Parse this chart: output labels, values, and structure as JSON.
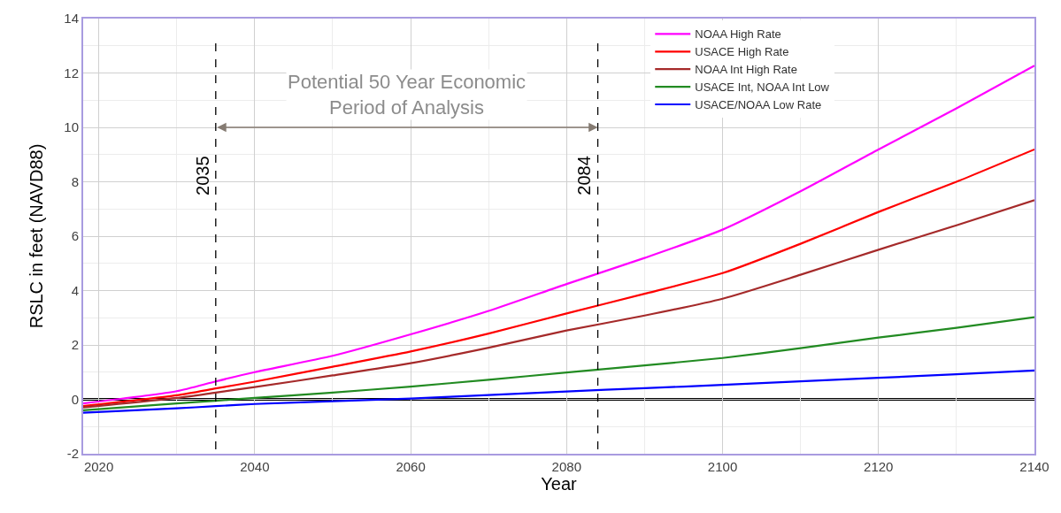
{
  "chart_data": {
    "type": "line",
    "xlabel": "Year",
    "ylabel": "RSLC in feet (NAVD88)",
    "x": [
      2018,
      2030,
      2035,
      2040,
      2050,
      2060,
      2070,
      2080,
      2090,
      2100,
      2110,
      2120,
      2130,
      2140
    ],
    "series": [
      {
        "name": "NOAA High Rate",
        "color": "#ff00ff",
        "values": [
          -0.15,
          0.3,
          0.66,
          1.0,
          1.6,
          2.39,
          3.25,
          4.24,
          5.2,
          6.24,
          7.65,
          9.19,
          10.7,
          12.27
        ]
      },
      {
        "name": "USACE High Rate",
        "color": "#ff0000",
        "values": [
          -0.25,
          0.15,
          0.4,
          0.65,
          1.2,
          1.76,
          2.42,
          3.16,
          3.88,
          4.64,
          5.72,
          6.89,
          8.0,
          9.19
        ]
      },
      {
        "name": "NOAA Int High Rate",
        "color": "#a52a2a",
        "values": [
          -0.3,
          0.05,
          0.25,
          0.45,
          0.88,
          1.33,
          1.9,
          2.53,
          3.08,
          3.7,
          4.58,
          5.5,
          6.4,
          7.32
        ]
      },
      {
        "name": "USACE Int, NOAA Int Low",
        "color": "#228b22",
        "values": [
          -0.4,
          -0.15,
          -0.05,
          0.05,
          0.25,
          0.47,
          0.72,
          0.99,
          1.25,
          1.52,
          1.88,
          2.27,
          2.63,
          3.02
        ]
      },
      {
        "name": "USACE/NOAA Low Rate",
        "color": "#0000ff",
        "values": [
          -0.49,
          -0.33,
          -0.25,
          -0.17,
          -0.07,
          0.03,
          0.16,
          0.29,
          0.41,
          0.53,
          0.66,
          0.79,
          0.92,
          1.06
        ]
      }
    ],
    "xlim": [
      2018,
      2140
    ],
    "xticks": [
      2020,
      2040,
      2060,
      2080,
      2100,
      2120,
      2140
    ],
    "ylim": [
      -2,
      14
    ],
    "yticks": [
      -2,
      0,
      2,
      4,
      6,
      8,
      10,
      12,
      14
    ],
    "ref_lines": [
      {
        "axis": "y",
        "value": 0,
        "label": null,
        "color": "#000000",
        "line_style": "solid"
      },
      {
        "axis": "x",
        "value": 2035,
        "label": "2035",
        "color": "#000000",
        "line_style": "dashed"
      },
      {
        "axis": "x",
        "value": 2084,
        "label": "2084",
        "color": "#000000",
        "line_style": "dashed"
      }
    ],
    "annotations": [
      "Potential 50 Year Economic\nPeriod of Analysis"
    ],
    "grid": true,
    "legend": "top right",
    "marker": "none",
    "line_style": "solid"
  }
}
